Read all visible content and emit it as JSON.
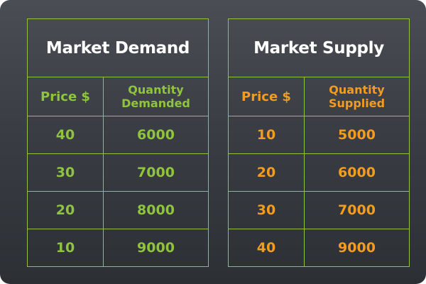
{
  "colors": {
    "background": "#3a3e44",
    "border": "#8fc53c",
    "title": "#ffffff",
    "demand_accent": "#8fc53c",
    "supply_accent": "#f39c1f"
  },
  "demand": {
    "title": "Market Demand",
    "price_header": "Price $",
    "quantity_header": [
      "Quantity",
      "Demanded"
    ],
    "rows": [
      {
        "price": "40",
        "quantity": "6000"
      },
      {
        "price": "30",
        "quantity": "7000"
      },
      {
        "price": "20",
        "quantity": "8000"
      },
      {
        "price": "10",
        "quantity": "9000"
      }
    ]
  },
  "supply": {
    "title": "Market Supply",
    "price_header": "Price $",
    "quantity_header": [
      "Quantity",
      "Supplied"
    ],
    "rows": [
      {
        "price": "10",
        "quantity": "5000"
      },
      {
        "price": "20",
        "quantity": "6000"
      },
      {
        "price": "30",
        "quantity": "7000"
      },
      {
        "price": "40",
        "quantity": "9000"
      }
    ]
  }
}
